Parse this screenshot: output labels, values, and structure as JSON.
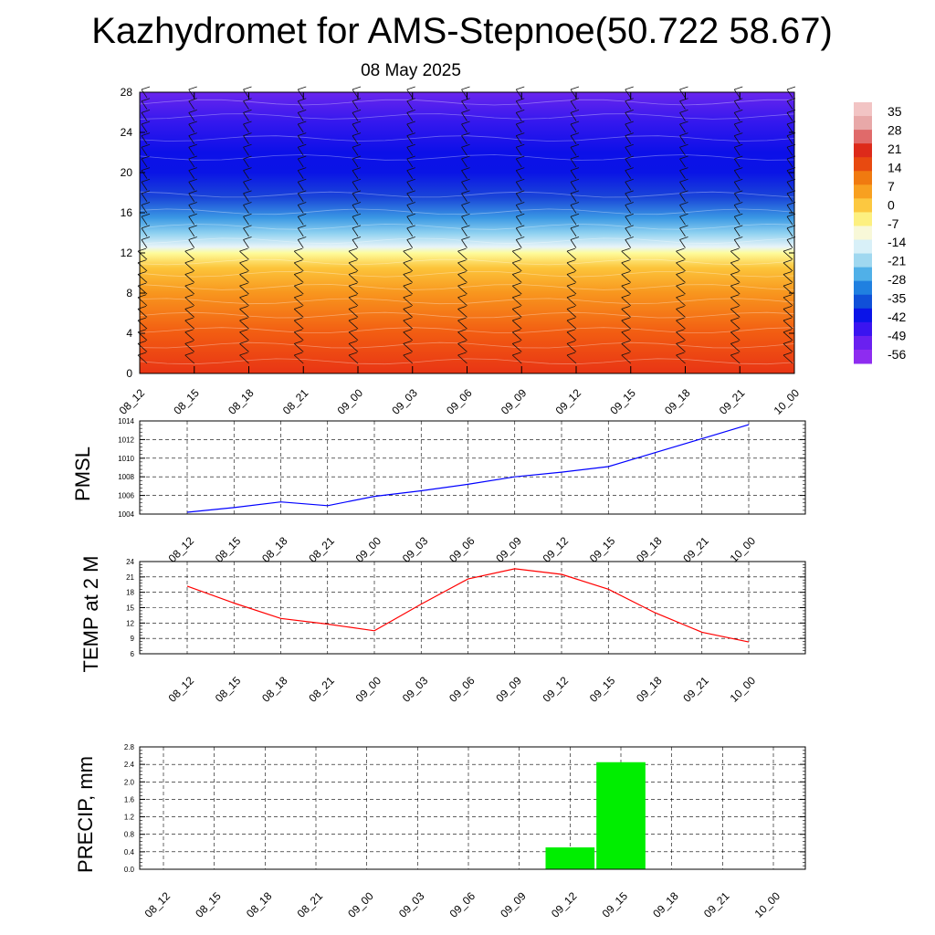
{
  "header": {
    "title": "Kazhydromet for AMS-Stepnoe(50.722 58.67)",
    "date": "08 May 2025"
  },
  "time_labels": [
    "08_12",
    "08_15",
    "08_18",
    "08_21",
    "09_00",
    "09_03",
    "09_06",
    "09_09",
    "09_12",
    "09_15",
    "09_18",
    "09_21",
    "10_00"
  ],
  "colors": {
    "pmsl_line": "#0000ff",
    "temp_line": "#ff0000",
    "precip_bar": "#00ee00"
  },
  "chart_data": [
    {
      "id": "cross_section",
      "type": "heatmap",
      "title": "",
      "ylabel": "",
      "ylim": [
        0,
        28
      ],
      "yticks": [
        0,
        4,
        8,
        12,
        16,
        20,
        24,
        28
      ],
      "x": [
        "08_12",
        "08_15",
        "08_18",
        "08_21",
        "09_00",
        "09_03",
        "09_06",
        "09_09",
        "09_12",
        "09_15",
        "09_18",
        "09_21",
        "10_00"
      ],
      "colorbar": {
        "labels": [
          "35",
          "28",
          "21",
          "14",
          "7",
          "0",
          "-7",
          "-14",
          "-21",
          "-28",
          "-35",
          "-42",
          "-49",
          "-56"
        ],
        "colors": [
          "#f2c4c4",
          "#e8a8a8",
          "#e06a6a",
          "#dd2a1a",
          "#e84a10",
          "#f07a10",
          "#f8a020",
          "#fcc840",
          "#fdf080",
          "#f8f8d8",
          "#d8f0f8",
          "#a0d8f0",
          "#50b0e8",
          "#2080e0",
          "#1050d8",
          "#0a14e8",
          "#3a14f0",
          "#6a20f0",
          "#8e2cf0"
        ]
      },
      "wind_barbs": true
    },
    {
      "id": "pmsl",
      "type": "line",
      "ylabel": "PMSL",
      "ylim": [
        1004,
        1014
      ],
      "yticks": [
        1004,
        1006,
        1008,
        1010,
        1012,
        1014
      ],
      "x": [
        "08_12",
        "08_15",
        "08_18",
        "08_21",
        "09_00",
        "09_03",
        "09_06",
        "09_09",
        "09_12",
        "09_15",
        "09_18",
        "09_21",
        "10_00"
      ],
      "series": [
        {
          "values": [
            1004.2,
            1004.7,
            1005.3,
            1004.9,
            1005.9,
            1006.5,
            1007.2,
            1008.0,
            1008.5,
            1009.1,
            1010.6,
            1012.1,
            1013.6
          ]
        }
      ],
      "grid": true
    },
    {
      "id": "temp2m",
      "type": "line",
      "ylabel": "TEMP at 2 M",
      "ylim": [
        6,
        24
      ],
      "yticks": [
        6,
        9,
        12,
        15,
        18,
        21,
        24
      ],
      "x": [
        "08_12",
        "08_15",
        "08_18",
        "08_21",
        "09_00",
        "09_03",
        "09_06",
        "09_09",
        "09_12",
        "09_15",
        "09_18",
        "09_21",
        "10_00"
      ],
      "series": [
        {
          "values": [
            19.2,
            15.9,
            12.9,
            11.8,
            10.5,
            15.7,
            20.6,
            22.6,
            21.5,
            18.6,
            14.0,
            10.2,
            8.3
          ]
        }
      ],
      "grid": true
    },
    {
      "id": "precip",
      "type": "bar",
      "ylabel": "PRECIP, mm",
      "ylim": [
        0,
        2.8
      ],
      "yticks": [
        0.0,
        0.4,
        0.8,
        1.2,
        1.6,
        2.0,
        2.4,
        2.8
      ],
      "ytick_labels": [
        "0.0",
        "0.4",
        "0.8",
        "1.2",
        "1.6",
        "2.0",
        "2.4",
        "2.8"
      ],
      "categories": [
        "08_12",
        "08_15",
        "08_18",
        "08_21",
        "09_00",
        "09_03",
        "09_06",
        "09_09",
        "09_12",
        "09_15",
        "09_18",
        "09_21",
        "10_00"
      ],
      "values": [
        0,
        0,
        0,
        0,
        0,
        0,
        0,
        0,
        0.5,
        2.45,
        0,
        0,
        0
      ],
      "grid": true
    }
  ]
}
